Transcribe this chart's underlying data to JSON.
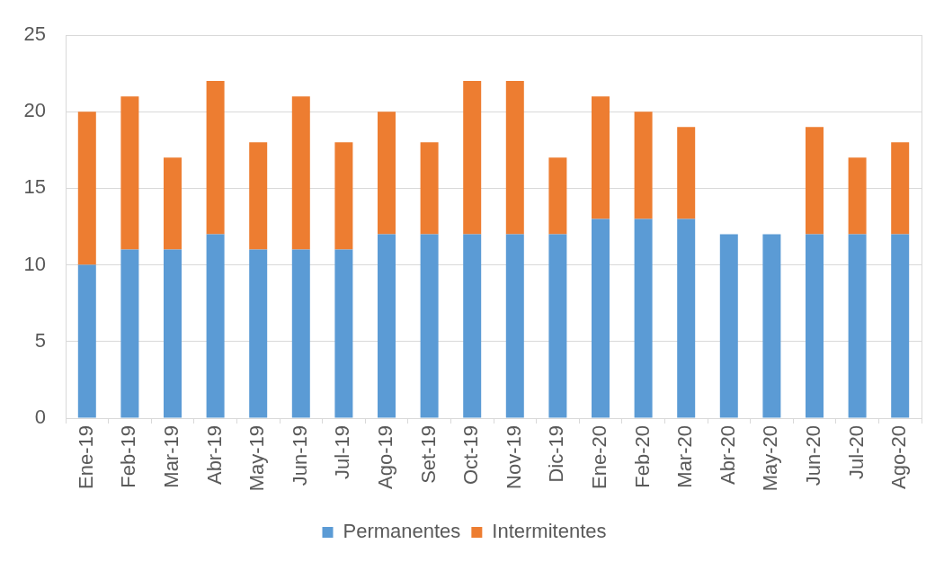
{
  "chart_data": {
    "type": "bar",
    "stacked": true,
    "categories": [
      "Ene-19",
      "Feb-19",
      "Mar-19",
      "Abr-19",
      "May-19",
      "Jun-19",
      "Jul-19",
      "Ago-19",
      "Set-19",
      "Oct-19",
      "Nov-19",
      "Dic-19",
      "Ene-20",
      "Feb-20",
      "Mar-20",
      "Abr-20",
      "May-20",
      "Jun-20",
      "Jul-20",
      "Ago-20"
    ],
    "series": [
      {
        "name": "Permanentes",
        "color": "#5b9bd5",
        "values": [
          10,
          11,
          11,
          12,
          11,
          11,
          11,
          12,
          12,
          12,
          12,
          12,
          13,
          13,
          13,
          12,
          12,
          12,
          12,
          12
        ]
      },
      {
        "name": "Intermitentes",
        "color": "#ed7d31",
        "values": [
          10,
          10,
          6,
          10,
          7,
          10,
          7,
          8,
          6,
          10,
          10,
          5,
          8,
          7,
          6,
          null,
          null,
          7,
          5,
          6
        ]
      }
    ],
    "ylim": [
      0,
      25
    ],
    "yticks": [
      0,
      5,
      10,
      15,
      20,
      25
    ],
    "grid": "y",
    "legend": "bottom"
  }
}
